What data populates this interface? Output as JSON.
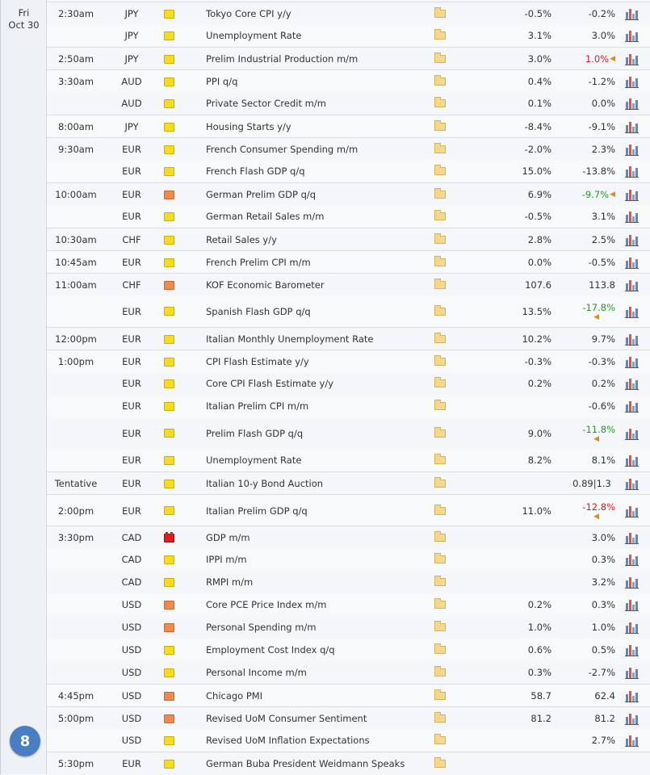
{
  "day": {
    "weekday": "Fri",
    "date": "Oct 30"
  },
  "badge": "8",
  "icons": {
    "importance": "importance-icon",
    "folder": "folder-icon",
    "chart": "chart-icon"
  },
  "colors": {
    "low": "#f7dc1e",
    "medium": "#f0894a",
    "high": "#e31b1b",
    "positive_revision": "#2a9a2a",
    "negative_revision": "#d41f1f"
  },
  "events": [
    {
      "time": "2:30am",
      "currency": "JPY",
      "impact": "low",
      "event": "Tokyo Core CPI y/y",
      "forecast": "-0.5%",
      "previous": "-0.2%",
      "rev": ""
    },
    {
      "time": "",
      "currency": "JPY",
      "impact": "low",
      "event": "Unemployment Rate",
      "forecast": "3.1%",
      "previous": "3.0%",
      "rev": ""
    },
    {
      "time": "2:50am",
      "currency": "JPY",
      "impact": "low",
      "event": "Prelim Industrial Production m/m",
      "forecast": "3.0%",
      "previous": "1.0%",
      "rev": "red"
    },
    {
      "time": "3:30am",
      "currency": "AUD",
      "impact": "low",
      "event": "PPI q/q",
      "forecast": "0.4%",
      "previous": "-1.2%",
      "rev": ""
    },
    {
      "time": "",
      "currency": "AUD",
      "impact": "low",
      "event": "Private Sector Credit m/m",
      "forecast": "0.1%",
      "previous": "0.0%",
      "rev": ""
    },
    {
      "time": "8:00am",
      "currency": "JPY",
      "impact": "low",
      "event": "Housing Starts y/y",
      "forecast": "-8.4%",
      "previous": "-9.1%",
      "rev": ""
    },
    {
      "time": "9:30am",
      "currency": "EUR",
      "impact": "low",
      "event": "French Consumer Spending m/m",
      "forecast": "-2.0%",
      "previous": "2.3%",
      "rev": ""
    },
    {
      "time": "",
      "currency": "EUR",
      "impact": "low",
      "event": "French Flash GDP q/q",
      "forecast": "15.0%",
      "previous": "-13.8%",
      "rev": ""
    },
    {
      "time": "10:00am",
      "currency": "EUR",
      "impact": "medium",
      "event": "German Prelim GDP q/q",
      "forecast": "6.9%",
      "previous": "-9.7%",
      "rev": "green"
    },
    {
      "time": "",
      "currency": "EUR",
      "impact": "low",
      "event": "German Retail Sales m/m",
      "forecast": "-0.5%",
      "previous": "3.1%",
      "rev": ""
    },
    {
      "time": "10:30am",
      "currency": "CHF",
      "impact": "low",
      "event": "Retail Sales y/y",
      "forecast": "2.8%",
      "previous": "2.5%",
      "rev": ""
    },
    {
      "time": "10:45am",
      "currency": "EUR",
      "impact": "low",
      "event": "French Prelim CPI m/m",
      "forecast": "0.0%",
      "previous": "-0.5%",
      "rev": ""
    },
    {
      "time": "11:00am",
      "currency": "CHF",
      "impact": "medium",
      "event": "KOF Economic Barometer",
      "forecast": "107.6",
      "previous": "113.8",
      "rev": ""
    },
    {
      "time": "",
      "currency": "EUR",
      "impact": "low",
      "event": "Spanish Flash GDP q/q",
      "forecast": "13.5%",
      "previous": "-17.8%",
      "rev": "green-below"
    },
    {
      "time": "12:00pm",
      "currency": "EUR",
      "impact": "low",
      "event": "Italian Monthly Unemployment Rate",
      "forecast": "10.2%",
      "previous": "9.7%",
      "rev": ""
    },
    {
      "time": "1:00pm",
      "currency": "EUR",
      "impact": "low",
      "event": "CPI Flash Estimate y/y",
      "forecast": "-0.3%",
      "previous": "-0.3%",
      "rev": ""
    },
    {
      "time": "",
      "currency": "EUR",
      "impact": "low",
      "event": "Core CPI Flash Estimate y/y",
      "forecast": "0.2%",
      "previous": "0.2%",
      "rev": ""
    },
    {
      "time": "",
      "currency": "EUR",
      "impact": "low",
      "event": "Italian Prelim CPI m/m",
      "forecast": "",
      "previous": "-0.6%",
      "rev": ""
    },
    {
      "time": "",
      "currency": "EUR",
      "impact": "low",
      "event": "Prelim Flash GDP q/q",
      "forecast": "9.0%",
      "previous": "-11.8%",
      "rev": "green-below"
    },
    {
      "time": "",
      "currency": "EUR",
      "impact": "low",
      "event": "Unemployment Rate",
      "forecast": "8.2%",
      "previous": "8.1%",
      "rev": ""
    },
    {
      "time": "Tentative",
      "currency": "EUR",
      "impact": "low",
      "event": "Italian 10-y Bond Auction",
      "forecast": "",
      "previous": "0.89|1.3",
      "rev": "tentative"
    },
    {
      "time": "2:00pm",
      "currency": "EUR",
      "impact": "low",
      "event": "Italian Prelim GDP q/q",
      "forecast": "11.0%",
      "previous": "-12.8%",
      "rev": "red-below"
    },
    {
      "time": "3:30pm",
      "currency": "CAD",
      "impact": "high",
      "event": "GDP m/m",
      "forecast": "",
      "previous": "3.0%",
      "rev": ""
    },
    {
      "time": "",
      "currency": "CAD",
      "impact": "low",
      "event": "IPPI m/m",
      "forecast": "",
      "previous": "0.3%",
      "rev": ""
    },
    {
      "time": "",
      "currency": "CAD",
      "impact": "low",
      "event": "RMPI m/m",
      "forecast": "",
      "previous": "3.2%",
      "rev": ""
    },
    {
      "time": "",
      "currency": "USD",
      "impact": "medium",
      "event": "Core PCE Price Index m/m",
      "forecast": "0.2%",
      "previous": "0.3%",
      "rev": ""
    },
    {
      "time": "",
      "currency": "USD",
      "impact": "medium",
      "event": "Personal Spending m/m",
      "forecast": "1.0%",
      "previous": "1.0%",
      "rev": ""
    },
    {
      "time": "",
      "currency": "USD",
      "impact": "low",
      "event": "Employment Cost Index q/q",
      "forecast": "0.6%",
      "previous": "0.5%",
      "rev": ""
    },
    {
      "time": "",
      "currency": "USD",
      "impact": "low",
      "event": "Personal Income m/m",
      "forecast": "0.3%",
      "previous": "-2.7%",
      "rev": ""
    },
    {
      "time": "4:45pm",
      "currency": "USD",
      "impact": "medium",
      "event": "Chicago PMI",
      "forecast": "58.7",
      "previous": "62.4",
      "rev": ""
    },
    {
      "time": "5:00pm",
      "currency": "USD",
      "impact": "medium",
      "event": "Revised UoM Consumer Sentiment",
      "forecast": "81.2",
      "previous": "81.2",
      "rev": ""
    },
    {
      "time": "",
      "currency": "USD",
      "impact": "low",
      "event": "Revised UoM Inflation Expectations",
      "forecast": "",
      "previous": "2.7%",
      "rev": ""
    },
    {
      "time": "5:30pm",
      "currency": "EUR",
      "impact": "low",
      "event": "German Buba President Weidmann Speaks",
      "forecast": "",
      "previous": "",
      "rev": ""
    }
  ]
}
